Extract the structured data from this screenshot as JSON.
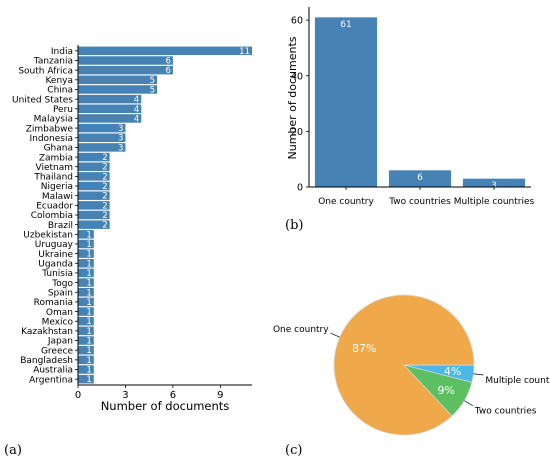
{
  "panels": {
    "a": "(a)",
    "b": "(b)",
    "c": "(c)"
  },
  "colors": {
    "bar": "#4682b4",
    "pie_one": "#f0a94a",
    "pie_two": "#5cbf60",
    "pie_multi": "#4db8e6",
    "axis": "#000000",
    "value_label": "#ffffff"
  },
  "chart_data": [
    {
      "type": "bar",
      "orientation": "horizontal",
      "categories": [
        "India",
        "Tanzania",
        "South Africa",
        "Kenya",
        "China",
        "United States",
        "Peru",
        "Malaysia",
        "Zimbabwe",
        "Indonesia",
        "Ghana",
        "Zambia",
        "Vietnam",
        "Thailand",
        "Nigeria",
        "Malawi",
        "Ecuador",
        "Colombia",
        "Brazil",
        "Uzbekistan",
        "Uruguay",
        "Ukraine",
        "Uganda",
        "Tunisia",
        "Togo",
        "Spain",
        "Romania",
        "Oman",
        "Mexico",
        "Kazakhstan",
        "Japan",
        "Greece",
        "Bangladesh",
        "Australia",
        "Argentina"
      ],
      "values": [
        11,
        6,
        6,
        5,
        5,
        4,
        4,
        4,
        3,
        3,
        3,
        2,
        2,
        2,
        2,
        2,
        2,
        2,
        2,
        1,
        1,
        1,
        1,
        1,
        1,
        1,
        1,
        1,
        1,
        1,
        1,
        1,
        1,
        1,
        1
      ],
      "xlabel": "Number of documents",
      "ylabel": "",
      "xlim": [
        0,
        11
      ],
      "xticks": [
        "0",
        "3",
        "6",
        "9"
      ],
      "grid": false
    },
    {
      "type": "bar",
      "categories": [
        "One country",
        "Two countries",
        "Multiple countries"
      ],
      "values": [
        61,
        6,
        3
      ],
      "xlabel": "",
      "ylabel": "Number of documents",
      "ylim": [
        0,
        64
      ],
      "yticks": [
        "0",
        "20",
        "40",
        "60"
      ],
      "grid": false
    },
    {
      "type": "pie",
      "categories": [
        "One country",
        "Two countries",
        "Multiple countries"
      ],
      "values": [
        87,
        9,
        4
      ],
      "labels": [
        "87%",
        "9%",
        "4%"
      ]
    }
  ]
}
